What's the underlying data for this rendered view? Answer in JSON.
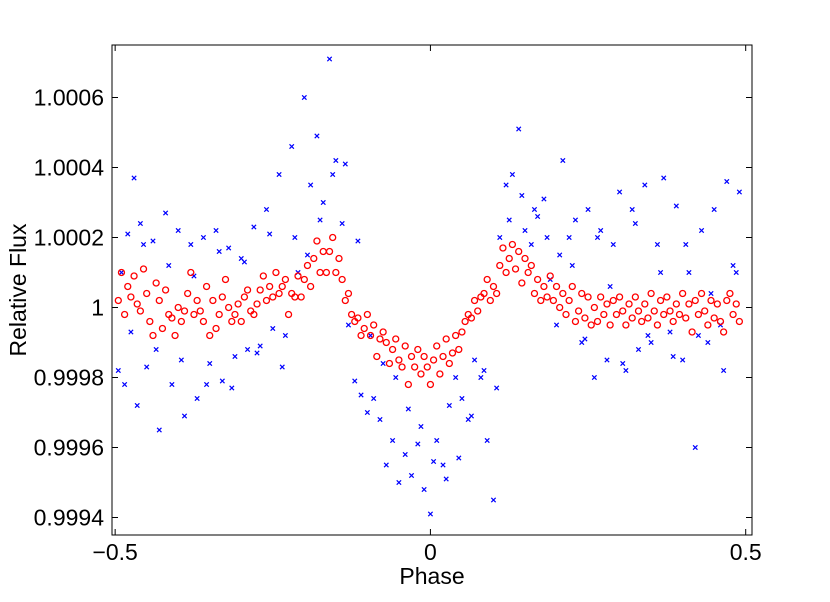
{
  "chart_data": {
    "type": "scatter",
    "title": "",
    "xlabel": "Phase",
    "ylabel": "Relative Flux",
    "xlim": [
      -0.505,
      0.51
    ],
    "ylim": [
      0.99935,
      1.00075
    ],
    "grid": false,
    "legend": "none",
    "x_ticks": [
      -0.5,
      0,
      0.5
    ],
    "x_tick_labels": [
      "−0.5",
      "0",
      "0.5"
    ],
    "y_ticks": [
      0.9994,
      0.9996,
      0.9998,
      1.0,
      1.0002,
      1.0004,
      1.0006
    ],
    "y_tick_labels": [
      "0.9994",
      "0.9996",
      "0.9998",
      "1",
      "1.0002",
      "1.0004",
      "1.0006"
    ],
    "series": [
      {
        "marker": "x",
        "color": "#0000ff",
        "x": [
          -0.495,
          -0.49,
          -0.485,
          -0.48,
          -0.47,
          -0.465,
          -0.46,
          -0.45,
          -0.44,
          -0.43,
          -0.42,
          -0.41,
          -0.4,
          -0.39,
          -0.38,
          -0.37,
          -0.36,
          -0.35,
          -0.34,
          -0.33,
          -0.32,
          -0.31,
          -0.3,
          -0.29,
          -0.28,
          -0.27,
          -0.26,
          -0.25,
          -0.24,
          -0.23,
          -0.22,
          -0.21,
          -0.2,
          -0.19,
          -0.18,
          -0.17,
          -0.16,
          -0.15,
          -0.14,
          -0.13,
          -0.12,
          -0.11,
          -0.1,
          -0.09,
          -0.08,
          -0.07,
          -0.06,
          -0.05,
          -0.04,
          -0.03,
          -0.02,
          -0.01,
          0.0,
          0.01,
          0.02,
          0.03,
          0.04,
          0.05,
          0.06,
          0.07,
          0.08,
          0.09,
          0.1,
          0.11,
          0.12,
          0.13,
          0.14,
          0.15,
          0.16,
          0.17,
          0.18,
          0.19,
          0.2,
          0.21,
          0.22,
          0.23,
          0.24,
          0.25,
          0.26,
          0.27,
          0.28,
          0.29,
          0.3,
          0.31,
          0.32,
          0.33,
          0.34,
          0.35,
          0.36,
          0.37,
          0.38,
          0.39,
          0.4,
          0.41,
          0.42,
          0.43,
          0.44,
          0.45,
          0.46,
          0.47,
          0.48,
          0.49,
          -0.475,
          -0.455,
          -0.435,
          -0.415,
          -0.395,
          -0.375,
          -0.355,
          -0.335,
          -0.315,
          -0.295,
          -0.275,
          -0.255,
          -0.235,
          -0.215,
          -0.195,
          -0.175,
          -0.155,
          -0.135,
          -0.115,
          -0.095,
          -0.075,
          -0.055,
          -0.035,
          -0.015,
          0.005,
          0.025,
          0.045,
          0.065,
          0.085,
          0.105,
          0.125,
          0.145,
          0.165,
          0.185,
          0.205,
          0.225,
          0.245,
          0.265,
          0.285,
          0.305,
          0.325,
          0.345,
          0.365,
          0.385,
          0.405,
          0.425,
          0.445,
          0.465,
          0.485
        ],
        "y": [
          0.99982,
          1.0001,
          0.99978,
          1.00021,
          1.00037,
          0.99972,
          1.00024,
          0.99983,
          1.00019,
          0.99965,
          1.00027,
          0.99978,
          1.00022,
          0.99969,
          1.00018,
          0.99974,
          1.0002,
          0.99984,
          1.00022,
          0.99979,
          1.00017,
          0.99986,
          1.00014,
          0.99988,
          1.00023,
          0.99989,
          1.00028,
          0.99994,
          1.00038,
          0.99992,
          1.00046,
          1.0001,
          1.0006,
          1.00035,
          1.00049,
          1.0003,
          1.00071,
          1.00042,
          1.00024,
          0.99995,
          0.99979,
          0.99975,
          0.9997,
          0.99974,
          0.99968,
          0.99955,
          0.99962,
          0.9995,
          0.99958,
          0.99952,
          0.99961,
          0.99948,
          0.99941,
          0.99962,
          0.99955,
          0.99972,
          0.9998,
          0.99974,
          0.99968,
          0.99985,
          0.9998,
          0.99962,
          0.99945,
          1.0002,
          1.00035,
          1.00038,
          1.00051,
          1.00022,
          1.00018,
          1.00026,
          1.00031,
          1.00008,
          0.99995,
          1.00042,
          1.0002,
          1.00025,
          0.9999,
          1.00028,
          0.9998,
          1.00022,
          0.99985,
          1.00018,
          1.00033,
          0.99982,
          1.00028,
          0.99988,
          1.00035,
          0.9999,
          1.00018,
          1.00037,
          0.99993,
          1.00029,
          0.99985,
          1.0001,
          0.9996,
          1.00022,
          0.9999,
          1.00028,
          0.99995,
          1.00036,
          1.00012,
          1.00033,
          0.99993,
          1.00018,
          0.99988,
          1.00012,
          0.99985,
          1.00009,
          0.99978,
          1.00016,
          0.99977,
          1.00013,
          0.99987,
          1.00021,
          0.99983,
          1.0002,
          1.00015,
          1.00025,
          1.00038,
          1.00041,
          1.00019,
          0.99992,
          0.99984,
          0.9998,
          0.99971,
          0.99966,
          0.99956,
          0.99951,
          0.99957,
          0.99969,
          0.99982,
          0.99977,
          1.00025,
          1.00032,
          1.00028,
          1.0002,
          1.00015,
          1.00012,
          0.99991,
          1.0002,
          1.00006,
          0.99984,
          1.00024,
          0.99992,
          1.0001,
          0.99986,
          1.00018,
          0.99992,
          1.00004,
          0.99982,
          1.0001
        ]
      },
      {
        "marker": "o",
        "color": "#ff0000",
        "x": [
          -0.495,
          -0.49,
          -0.485,
          -0.48,
          -0.475,
          -0.47,
          -0.465,
          -0.46,
          -0.455,
          -0.45,
          -0.445,
          -0.44,
          -0.435,
          -0.43,
          -0.425,
          -0.42,
          -0.415,
          -0.41,
          -0.405,
          -0.4,
          -0.395,
          -0.39,
          -0.385,
          -0.38,
          -0.375,
          -0.37,
          -0.365,
          -0.36,
          -0.355,
          -0.35,
          -0.345,
          -0.34,
          -0.335,
          -0.33,
          -0.325,
          -0.32,
          -0.315,
          -0.31,
          -0.305,
          -0.3,
          -0.295,
          -0.29,
          -0.285,
          -0.28,
          -0.275,
          -0.27,
          -0.265,
          -0.26,
          -0.255,
          -0.25,
          -0.245,
          -0.24,
          -0.235,
          -0.23,
          -0.225,
          -0.22,
          -0.215,
          -0.21,
          -0.205,
          -0.2,
          -0.195,
          -0.19,
          -0.185,
          -0.18,
          -0.175,
          -0.17,
          -0.165,
          -0.16,
          -0.155,
          -0.15,
          -0.145,
          -0.14,
          -0.135,
          -0.13,
          -0.125,
          -0.12,
          -0.115,
          -0.11,
          -0.105,
          -0.1,
          -0.095,
          -0.09,
          -0.085,
          -0.08,
          -0.075,
          -0.07,
          -0.065,
          -0.06,
          -0.055,
          -0.05,
          -0.045,
          -0.04,
          -0.035,
          -0.03,
          -0.025,
          -0.02,
          -0.015,
          -0.01,
          -0.005,
          0.0,
          0.005,
          0.01,
          0.015,
          0.02,
          0.025,
          0.03,
          0.035,
          0.04,
          0.045,
          0.05,
          0.055,
          0.06,
          0.065,
          0.07,
          0.075,
          0.08,
          0.085,
          0.09,
          0.095,
          0.1,
          0.105,
          0.11,
          0.115,
          0.12,
          0.125,
          0.13,
          0.135,
          0.14,
          0.145,
          0.15,
          0.155,
          0.16,
          0.165,
          0.17,
          0.175,
          0.18,
          0.185,
          0.19,
          0.195,
          0.2,
          0.205,
          0.21,
          0.215,
          0.22,
          0.225,
          0.23,
          0.235,
          0.24,
          0.245,
          0.25,
          0.255,
          0.26,
          0.265,
          0.27,
          0.275,
          0.28,
          0.285,
          0.29,
          0.295,
          0.3,
          0.305,
          0.31,
          0.315,
          0.32,
          0.325,
          0.33,
          0.335,
          0.34,
          0.345,
          0.35,
          0.355,
          0.36,
          0.365,
          0.37,
          0.375,
          0.38,
          0.385,
          0.39,
          0.395,
          0.4,
          0.405,
          0.41,
          0.415,
          0.42,
          0.425,
          0.43,
          0.435,
          0.44,
          0.445,
          0.45,
          0.455,
          0.46,
          0.465,
          0.47,
          0.475,
          0.48,
          0.485,
          0.49
        ],
        "y": [
          1.00002,
          1.0001,
          0.99998,
          1.00006,
          1.00003,
          1.00009,
          1.00001,
          0.99999,
          1.00011,
          1.00004,
          0.99996,
          0.99992,
          1.00007,
          1.00002,
          0.99994,
          1.00005,
          0.99998,
          0.99997,
          0.99992,
          1.0,
          0.99996,
          0.99999,
          1.00004,
          1.0001,
          0.99998,
          1.00002,
          0.99999,
          0.99996,
          1.00006,
          0.99992,
          1.00002,
          0.99994,
          0.99998,
          1.00003,
          1.00008,
          1.0,
          0.99996,
          0.99998,
          1.00001,
          0.99996,
          1.00003,
          1.00005,
          0.99999,
          0.99998,
          1.00001,
          1.00005,
          1.00009,
          1.00002,
          1.00006,
          1.00003,
          1.0001,
          1.00004,
          1.00006,
          1.00008,
          0.99998,
          1.00004,
          1.00003,
          1.00009,
          1.00003,
          1.00008,
          1.00012,
          1.00006,
          1.00014,
          1.00019,
          1.0001,
          1.00016,
          1.0001,
          1.00016,
          1.0002,
          1.0001,
          1.00014,
          1.00008,
          1.00002,
          1.00004,
          0.99998,
          0.99996,
          0.99997,
          0.99992,
          0.99994,
          0.99998,
          0.99992,
          0.99995,
          0.99986,
          0.99991,
          0.99993,
          0.9999,
          0.99984,
          0.99988,
          0.99991,
          0.99985,
          0.99983,
          0.99989,
          0.99978,
          0.99986,
          0.99983,
          0.99988,
          0.99981,
          0.99986,
          0.99983,
          0.99978,
          0.99985,
          0.99989,
          0.99981,
          0.99986,
          0.99991,
          0.99984,
          0.99987,
          0.99992,
          0.99988,
          0.99993,
          0.99996,
          0.99998,
          0.99997,
          1.00002,
          0.99999,
          1.00003,
          1.00004,
          1.00008,
          1.00002,
          1.00006,
          1.00004,
          1.00012,
          1.00017,
          1.0001,
          1.00014,
          1.00018,
          1.00011,
          1.00016,
          1.00007,
          1.00014,
          1.0001,
          1.00012,
          1.00004,
          1.00008,
          1.00002,
          1.00006,
          1.00003,
          1.00009,
          1.00002,
          1.00006,
          1.0,
          1.00004,
          0.99998,
          1.00002,
          1.00006,
          0.99996,
          0.99999,
          1.00004,
          0.99997,
          1.00003,
          0.99995,
          1.0,
          0.99996,
          1.00003,
          0.99998,
          1.00001,
          0.99995,
          1.00002,
          0.99998,
          1.00003,
          0.99999,
          0.99995,
          1.00001,
          0.99997,
          1.00003,
          0.99999,
          0.99996,
          1.00001,
          0.99997,
          1.00004,
          0.99999,
          0.99995,
          1.00002,
          0.99998,
          1.00003,
          0.99999,
          0.99996,
          1.00001,
          0.99998,
          1.00004,
          0.99997,
          1.00001,
          0.99993,
          1.00002,
          0.99998,
          1.00004,
          0.99999,
          0.99995,
          1.00002,
          0.99997,
          1.00001,
          0.99996,
          0.99993,
          1.00002,
          1.00004,
          0.99998,
          1.00001,
          0.99996
        ]
      }
    ]
  }
}
